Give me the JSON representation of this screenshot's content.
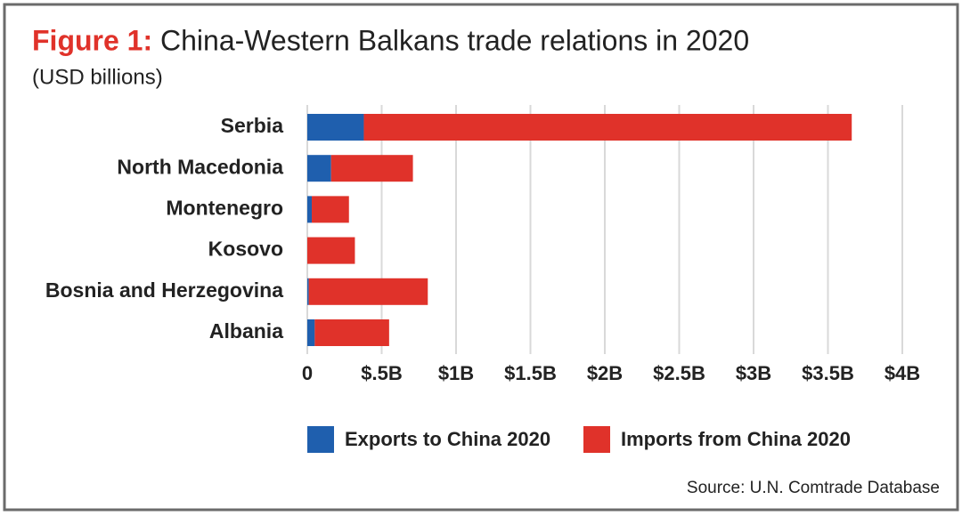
{
  "chart_data": {
    "type": "bar",
    "orientation": "horizontal",
    "stacked": true,
    "figure_label": "Figure 1:",
    "title": "China-Western Balkans trade relations in 2020",
    "subtitle": "(USD billions)",
    "source": "Source: U.N. Comtrade Database",
    "categories": [
      "Serbia",
      "North Macedonia",
      "Montenegro",
      "Kosovo",
      "Bosnia and Herzegovina",
      "Albania"
    ],
    "series": [
      {
        "name": "Exports to China 2020",
        "color": "#1f5fae",
        "values": [
          0.38,
          0.16,
          0.03,
          0,
          0.01,
          0.05
        ]
      },
      {
        "name": "Imports from China 2020",
        "color": "#e0322a",
        "values": [
          3.28,
          0.55,
          0.25,
          0.32,
          0.8,
          0.5
        ]
      }
    ],
    "xlim": [
      0,
      4
    ],
    "xticks": [
      0,
      {
        "value": 0.5,
        "label": "$.5B"
      },
      {
        "value": 1,
        "label": "$1B"
      },
      {
        "value": 1.5,
        "label": "$1.5B"
      },
      {
        "value": 2,
        "label": "$2B"
      },
      {
        "value": 2.5,
        "label": "$2.5B"
      },
      {
        "value": 3,
        "label": "$3B"
      },
      {
        "value": 3.5,
        "label": "$3.5B"
      },
      {
        "value": 4,
        "label": "$4B"
      }
    ],
    "grid": true
  }
}
